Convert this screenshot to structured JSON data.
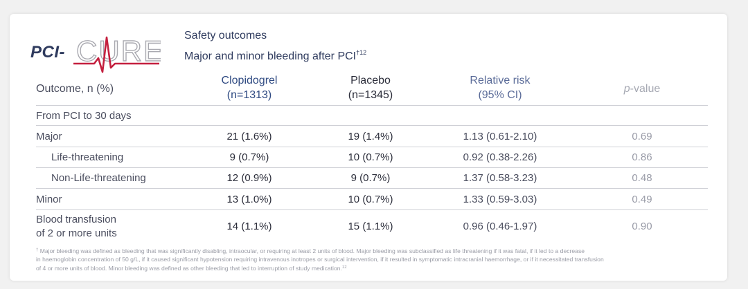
{
  "logo": {
    "prefix": "PCI-",
    "name": "CURE"
  },
  "title": {
    "line1": "Safety outcomes",
    "line2": "Major and minor bleeding after PCI",
    "line2_sup": "†12"
  },
  "table": {
    "headers": {
      "outcome": "Outcome, n (%)",
      "clopidogrel": [
        "Clopidogrel",
        "(n=1313)"
      ],
      "placebo": [
        "Placebo",
        "(n=1345)"
      ],
      "rr": [
        "Relative risk",
        "(95% CI)"
      ],
      "pvalue_italic": "p",
      "pvalue_rest": "-value"
    },
    "section": "From PCI to 30 days",
    "rows": [
      {
        "outcome": "Major",
        "clopidogrel": "21 (1.6%)",
        "placebo": "19 (1.4%)",
        "rr": "1.13 (0.61-2.10)",
        "p": "0.69"
      },
      {
        "outcome": "Life-threatening",
        "clopidogrel": "9 (0.7%)",
        "placebo": "10 (0.7%)",
        "rr": "0.92 (0.38-2.26)",
        "p": "0.86"
      },
      {
        "outcome": "Non-Life-threatening",
        "clopidogrel": "12 (0.9%)",
        "placebo": "9 (0.7%)",
        "rr": "1.37 (0.58-3.23)",
        "p": "0.48"
      },
      {
        "outcome": "Minor",
        "clopidogrel": "13 (1.0%)",
        "placebo": "10 (0.7%)",
        "rr": "1.33 (0.59-3.03)",
        "p": "0.49"
      },
      {
        "outcome": [
          "Blood transfusion",
          "of 2 or more units"
        ],
        "clopidogrel": "14 (1.1%)",
        "placebo": "15 (1.1%)",
        "rr": "0.96 (0.46-1.97)",
        "p": "0.90"
      }
    ]
  },
  "footnote": {
    "marker": "†",
    "line1": "Major bleeding was defined as bleeding that was significantly disabling, intraocular, or requiring at least 2 units of blood. Major bleeding was subclassified as life threatening if it was fatal, if it led to a decrease",
    "line2": "in haemoglobin concentration of 50 g/L, if it caused significant hypotension requiring intravenous inotropes or surgical intervention, if it resulted in symptomatic intracranial haemorrhage, or if it necessitated transfusion",
    "line3": "of 4 or more units of blood. Minor bleeding was defined as other bleeding that led to interruption of study medication.",
    "line3_sup": "12"
  }
}
